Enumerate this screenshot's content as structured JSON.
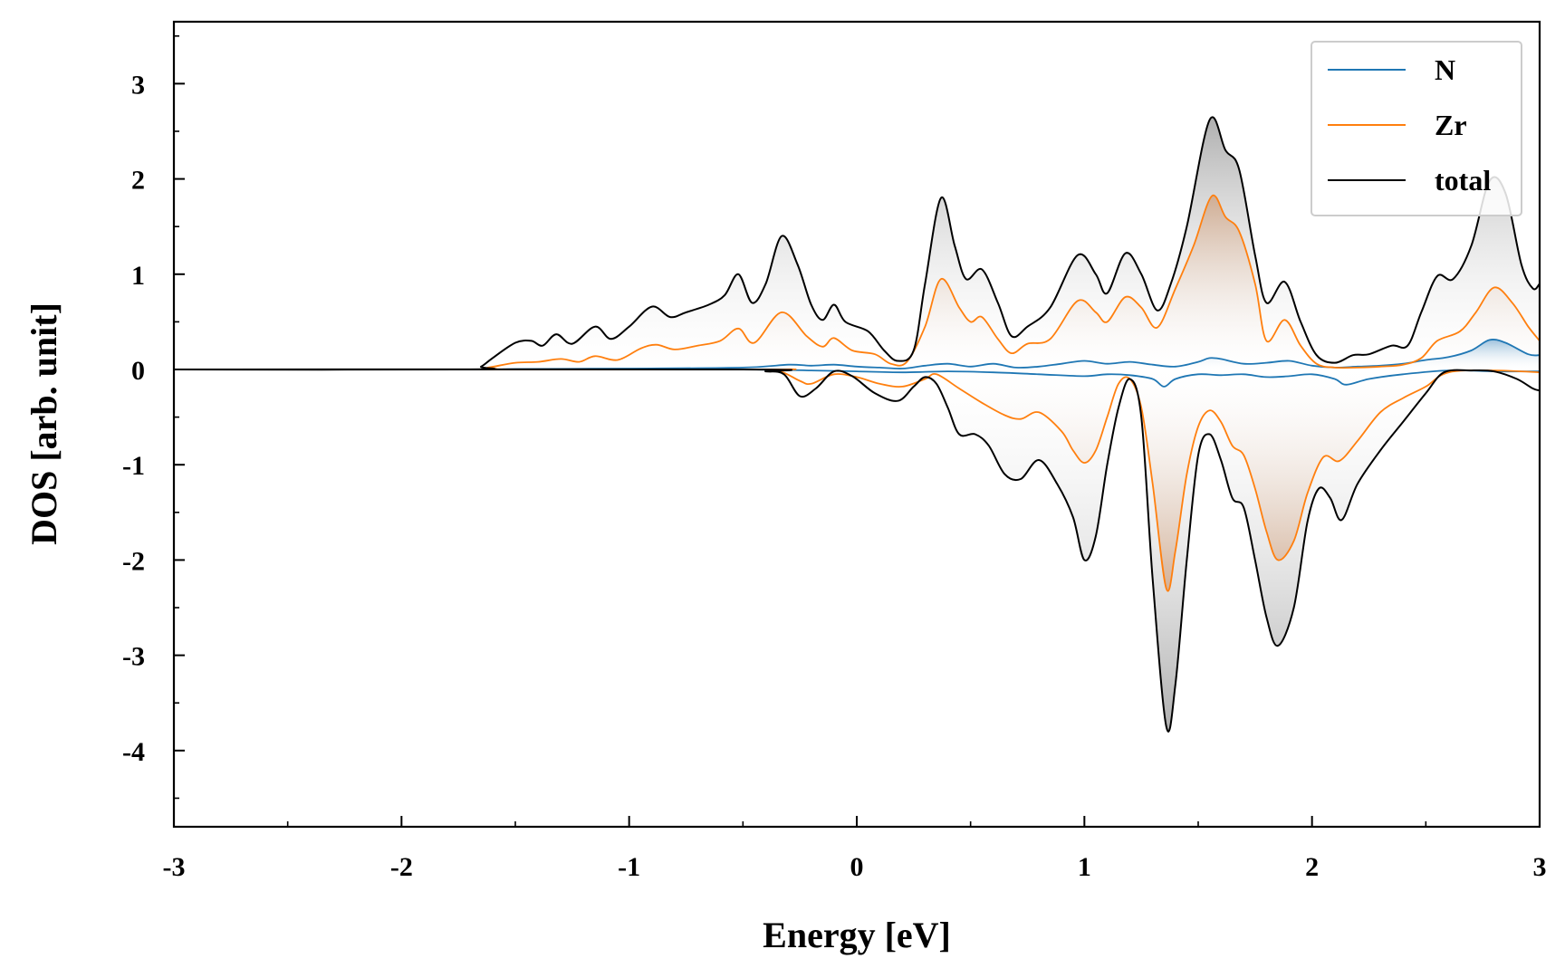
{
  "chart_data": {
    "type": "area",
    "xlabel": "Energy [eV]",
    "ylabel": "DOS [arb. unit]",
    "xlim": [
      -3,
      3
    ],
    "ylim": [
      -4.8,
      3.65
    ],
    "x_ticks": [
      -3,
      -2,
      -1,
      0,
      1,
      2,
      3
    ],
    "y_ticks": [
      -4,
      -3,
      -2,
      -1,
      0,
      1,
      2,
      3
    ],
    "x_tick_labels": [
      "-3",
      "-2",
      "-1",
      "0",
      "1",
      "2",
      "3"
    ],
    "y_tick_labels": [
      "-4",
      "-3",
      "-2",
      "-1",
      "0",
      "1",
      "2",
      "3"
    ],
    "legend_position": "top-right",
    "series": [
      {
        "name": "N",
        "color": "#1f77b4",
        "up": [
          [
            -3,
            0
          ],
          [
            -1.7,
            0
          ],
          [
            -1.5,
            0.005
          ],
          [
            -1,
            0.01
          ],
          [
            -0.5,
            0.02
          ],
          [
            -0.3,
            0.05
          ],
          [
            -0.2,
            0.04
          ],
          [
            -0.1,
            0.05
          ],
          [
            0,
            0.03
          ],
          [
            0.1,
            0.02
          ],
          [
            0.2,
            0.01
          ],
          [
            0.3,
            0.04
          ],
          [
            0.4,
            0.06
          ],
          [
            0.5,
            0.03
          ],
          [
            0.6,
            0.06
          ],
          [
            0.7,
            0.02
          ],
          [
            0.8,
            0.03
          ],
          [
            0.9,
            0.06
          ],
          [
            1.0,
            0.09
          ],
          [
            1.1,
            0.06
          ],
          [
            1.2,
            0.08
          ],
          [
            1.3,
            0.05
          ],
          [
            1.4,
            0.03
          ],
          [
            1.5,
            0.08
          ],
          [
            1.55,
            0.12
          ],
          [
            1.6,
            0.11
          ],
          [
            1.7,
            0.06
          ],
          [
            1.8,
            0.07
          ],
          [
            1.9,
            0.09
          ],
          [
            2.0,
            0.04
          ],
          [
            2.1,
            0.02
          ],
          [
            2.2,
            0.03
          ],
          [
            2.3,
            0.04
          ],
          [
            2.4,
            0.06
          ],
          [
            2.5,
            0.1
          ],
          [
            2.6,
            0.13
          ],
          [
            2.7,
            0.2
          ],
          [
            2.78,
            0.31
          ],
          [
            2.85,
            0.28
          ],
          [
            2.95,
            0.16
          ],
          [
            3,
            0.15
          ]
        ],
        "down": [
          [
            -3,
            0
          ],
          [
            -1,
            0
          ],
          [
            -0.5,
            0
          ],
          [
            -0.2,
            -0.01
          ],
          [
            0,
            -0.02
          ],
          [
            0.2,
            -0.03
          ],
          [
            0.4,
            -0.02
          ],
          [
            0.6,
            -0.03
          ],
          [
            0.8,
            -0.05
          ],
          [
            1.0,
            -0.07
          ],
          [
            1.1,
            -0.05
          ],
          [
            1.2,
            -0.06
          ],
          [
            1.3,
            -0.1
          ],
          [
            1.35,
            -0.18
          ],
          [
            1.4,
            -0.1
          ],
          [
            1.5,
            -0.05
          ],
          [
            1.6,
            -0.06
          ],
          [
            1.7,
            -0.05
          ],
          [
            1.8,
            -0.08
          ],
          [
            1.9,
            -0.07
          ],
          [
            2.0,
            -0.05
          ],
          [
            2.1,
            -0.1
          ],
          [
            2.15,
            -0.16
          ],
          [
            2.25,
            -0.1
          ],
          [
            2.4,
            -0.05
          ],
          [
            2.6,
            -0.01
          ],
          [
            2.8,
            -0.02
          ],
          [
            3,
            -0.02
          ]
        ]
      },
      {
        "name": "Zr",
        "color": "#ff7f0e",
        "up": [
          [
            -3,
            0
          ],
          [
            -1.7,
            0
          ],
          [
            -1.62,
            0.02
          ],
          [
            -1.5,
            0.07
          ],
          [
            -1.4,
            0.08
          ],
          [
            -1.3,
            0.11
          ],
          [
            -1.22,
            0.08
          ],
          [
            -1.15,
            0.14
          ],
          [
            -1.05,
            0.1
          ],
          [
            -0.95,
            0.22
          ],
          [
            -0.88,
            0.26
          ],
          [
            -0.8,
            0.21
          ],
          [
            -0.7,
            0.25
          ],
          [
            -0.6,
            0.3
          ],
          [
            -0.52,
            0.43
          ],
          [
            -0.45,
            0.28
          ],
          [
            -0.33,
            0.6
          ],
          [
            -0.22,
            0.35
          ],
          [
            -0.15,
            0.24
          ],
          [
            -0.1,
            0.33
          ],
          [
            -0.02,
            0.2
          ],
          [
            0.08,
            0.16
          ],
          [
            0.15,
            0.06
          ],
          [
            0.22,
            0.08
          ],
          [
            0.3,
            0.45
          ],
          [
            0.37,
            0.95
          ],
          [
            0.45,
            0.65
          ],
          [
            0.5,
            0.5
          ],
          [
            0.55,
            0.55
          ],
          [
            0.62,
            0.32
          ],
          [
            0.68,
            0.17
          ],
          [
            0.75,
            0.27
          ],
          [
            0.85,
            0.32
          ],
          [
            0.97,
            0.72
          ],
          [
            1.05,
            0.6
          ],
          [
            1.1,
            0.5
          ],
          [
            1.18,
            0.76
          ],
          [
            1.25,
            0.65
          ],
          [
            1.32,
            0.44
          ],
          [
            1.4,
            0.85
          ],
          [
            1.48,
            1.3
          ],
          [
            1.56,
            1.82
          ],
          [
            1.62,
            1.6
          ],
          [
            1.68,
            1.45
          ],
          [
            1.75,
            0.9
          ],
          [
            1.8,
            0.3
          ],
          [
            1.88,
            0.52
          ],
          [
            1.95,
            0.25
          ],
          [
            2.02,
            0.06
          ],
          [
            2.1,
            0.02
          ],
          [
            2.2,
            0.02
          ],
          [
            2.3,
            0.03
          ],
          [
            2.4,
            0.05
          ],
          [
            2.48,
            0.12
          ],
          [
            2.55,
            0.3
          ],
          [
            2.65,
            0.4
          ],
          [
            2.72,
            0.6
          ],
          [
            2.8,
            0.86
          ],
          [
            2.88,
            0.7
          ],
          [
            2.95,
            0.45
          ],
          [
            3,
            0.3
          ]
        ],
        "down": [
          [
            -3,
            0
          ],
          [
            -0.5,
            0
          ],
          [
            -0.35,
            -0.01
          ],
          [
            -0.25,
            -0.12
          ],
          [
            -0.2,
            -0.15
          ],
          [
            -0.1,
            -0.05
          ],
          [
            0,
            -0.08
          ],
          [
            0.1,
            -0.15
          ],
          [
            0.2,
            -0.18
          ],
          [
            0.3,
            -0.1
          ],
          [
            0.35,
            -0.05
          ],
          [
            0.45,
            -0.2
          ],
          [
            0.55,
            -0.35
          ],
          [
            0.65,
            -0.48
          ],
          [
            0.72,
            -0.52
          ],
          [
            0.8,
            -0.45
          ],
          [
            0.9,
            -0.65
          ],
          [
            0.95,
            -0.85
          ],
          [
            1.0,
            -0.98
          ],
          [
            1.05,
            -0.85
          ],
          [
            1.1,
            -0.5
          ],
          [
            1.15,
            -0.15
          ],
          [
            1.2,
            -0.1
          ],
          [
            1.25,
            -0.4
          ],
          [
            1.3,
            -1.2
          ],
          [
            1.36,
            -2.3
          ],
          [
            1.4,
            -1.9
          ],
          [
            1.45,
            -1.1
          ],
          [
            1.5,
            -0.6
          ],
          [
            1.55,
            -0.43
          ],
          [
            1.6,
            -0.55
          ],
          [
            1.65,
            -0.8
          ],
          [
            1.7,
            -0.9
          ],
          [
            1.75,
            -1.25
          ],
          [
            1.8,
            -1.7
          ],
          [
            1.85,
            -2.0
          ],
          [
            1.92,
            -1.8
          ],
          [
            1.98,
            -1.3
          ],
          [
            2.05,
            -0.92
          ],
          [
            2.12,
            -0.96
          ],
          [
            2.2,
            -0.75
          ],
          [
            2.3,
            -0.45
          ],
          [
            2.4,
            -0.3
          ],
          [
            2.5,
            -0.18
          ],
          [
            2.6,
            -0.03
          ],
          [
            2.8,
            -0.01
          ],
          [
            3,
            -0.03
          ]
        ]
      },
      {
        "name": "total",
        "color": "#000000",
        "up": [
          [
            -3,
            0
          ],
          [
            -1.7,
            0
          ],
          [
            -1.65,
            0.03
          ],
          [
            -1.6,
            0.12
          ],
          [
            -1.5,
            0.28
          ],
          [
            -1.43,
            0.3
          ],
          [
            -1.38,
            0.25
          ],
          [
            -1.32,
            0.37
          ],
          [
            -1.25,
            0.27
          ],
          [
            -1.15,
            0.45
          ],
          [
            -1.08,
            0.32
          ],
          [
            -1.0,
            0.45
          ],
          [
            -0.9,
            0.66
          ],
          [
            -0.82,
            0.55
          ],
          [
            -0.75,
            0.6
          ],
          [
            -0.65,
            0.68
          ],
          [
            -0.58,
            0.78
          ],
          [
            -0.52,
            1.0
          ],
          [
            -0.46,
            0.7
          ],
          [
            -0.4,
            0.9
          ],
          [
            -0.33,
            1.4
          ],
          [
            -0.26,
            1.1
          ],
          [
            -0.2,
            0.68
          ],
          [
            -0.15,
            0.52
          ],
          [
            -0.1,
            0.68
          ],
          [
            -0.05,
            0.5
          ],
          [
            0.05,
            0.4
          ],
          [
            0.12,
            0.2
          ],
          [
            0.18,
            0.09
          ],
          [
            0.25,
            0.2
          ],
          [
            0.3,
            0.9
          ],
          [
            0.37,
            1.8
          ],
          [
            0.43,
            1.3
          ],
          [
            0.48,
            0.95
          ],
          [
            0.55,
            1.05
          ],
          [
            0.62,
            0.7
          ],
          [
            0.68,
            0.35
          ],
          [
            0.75,
            0.45
          ],
          [
            0.85,
            0.65
          ],
          [
            0.97,
            1.2
          ],
          [
            1.05,
            1.0
          ],
          [
            1.1,
            0.8
          ],
          [
            1.18,
            1.22
          ],
          [
            1.25,
            1.0
          ],
          [
            1.32,
            0.62
          ],
          [
            1.38,
            0.9
          ],
          [
            1.45,
            1.5
          ],
          [
            1.55,
            2.62
          ],
          [
            1.62,
            2.3
          ],
          [
            1.68,
            2.1
          ],
          [
            1.75,
            1.2
          ],
          [
            1.8,
            0.7
          ],
          [
            1.88,
            0.92
          ],
          [
            1.95,
            0.5
          ],
          [
            2.02,
            0.15
          ],
          [
            2.1,
            0.07
          ],
          [
            2.18,
            0.15
          ],
          [
            2.25,
            0.16
          ],
          [
            2.35,
            0.25
          ],
          [
            2.42,
            0.25
          ],
          [
            2.48,
            0.6
          ],
          [
            2.55,
            0.98
          ],
          [
            2.62,
            0.95
          ],
          [
            2.7,
            1.3
          ],
          [
            2.78,
            1.98
          ],
          [
            2.85,
            1.85
          ],
          [
            2.92,
            1.1
          ],
          [
            2.97,
            0.85
          ],
          [
            3,
            0.9
          ]
        ],
        "down": [
          [
            -3,
            0
          ],
          [
            -0.5,
            0
          ],
          [
            -0.4,
            -0.02
          ],
          [
            -0.32,
            -0.05
          ],
          [
            -0.25,
            -0.28
          ],
          [
            -0.18,
            -0.2
          ],
          [
            -0.1,
            -0.02
          ],
          [
            -0.02,
            -0.07
          ],
          [
            0.08,
            -0.25
          ],
          [
            0.18,
            -0.33
          ],
          [
            0.25,
            -0.18
          ],
          [
            0.3,
            -0.08
          ],
          [
            0.35,
            -0.15
          ],
          [
            0.4,
            -0.4
          ],
          [
            0.45,
            -0.68
          ],
          [
            0.52,
            -0.68
          ],
          [
            0.58,
            -0.8
          ],
          [
            0.65,
            -1.1
          ],
          [
            0.72,
            -1.15
          ],
          [
            0.8,
            -0.95
          ],
          [
            0.88,
            -1.2
          ],
          [
            0.95,
            -1.55
          ],
          [
            1.0,
            -2.0
          ],
          [
            1.05,
            -1.75
          ],
          [
            1.1,
            -1.0
          ],
          [
            1.15,
            -0.4
          ],
          [
            1.2,
            -0.1
          ],
          [
            1.25,
            -0.5
          ],
          [
            1.3,
            -2.2
          ],
          [
            1.36,
            -3.75
          ],
          [
            1.4,
            -3.3
          ],
          [
            1.45,
            -2.0
          ],
          [
            1.5,
            -0.9
          ],
          [
            1.55,
            -0.68
          ],
          [
            1.6,
            -0.95
          ],
          [
            1.65,
            -1.35
          ],
          [
            1.7,
            -1.45
          ],
          [
            1.75,
            -2.0
          ],
          [
            1.8,
            -2.6
          ],
          [
            1.85,
            -2.9
          ],
          [
            1.92,
            -2.5
          ],
          [
            1.98,
            -1.6
          ],
          [
            2.03,
            -1.25
          ],
          [
            2.08,
            -1.35
          ],
          [
            2.13,
            -1.58
          ],
          [
            2.2,
            -1.2
          ],
          [
            2.3,
            -0.85
          ],
          [
            2.4,
            -0.55
          ],
          [
            2.5,
            -0.25
          ],
          [
            2.58,
            -0.03
          ],
          [
            2.7,
            -0.01
          ],
          [
            2.8,
            -0.02
          ],
          [
            2.9,
            -0.1
          ],
          [
            2.97,
            -0.2
          ],
          [
            3,
            -0.22
          ]
        ]
      }
    ]
  }
}
